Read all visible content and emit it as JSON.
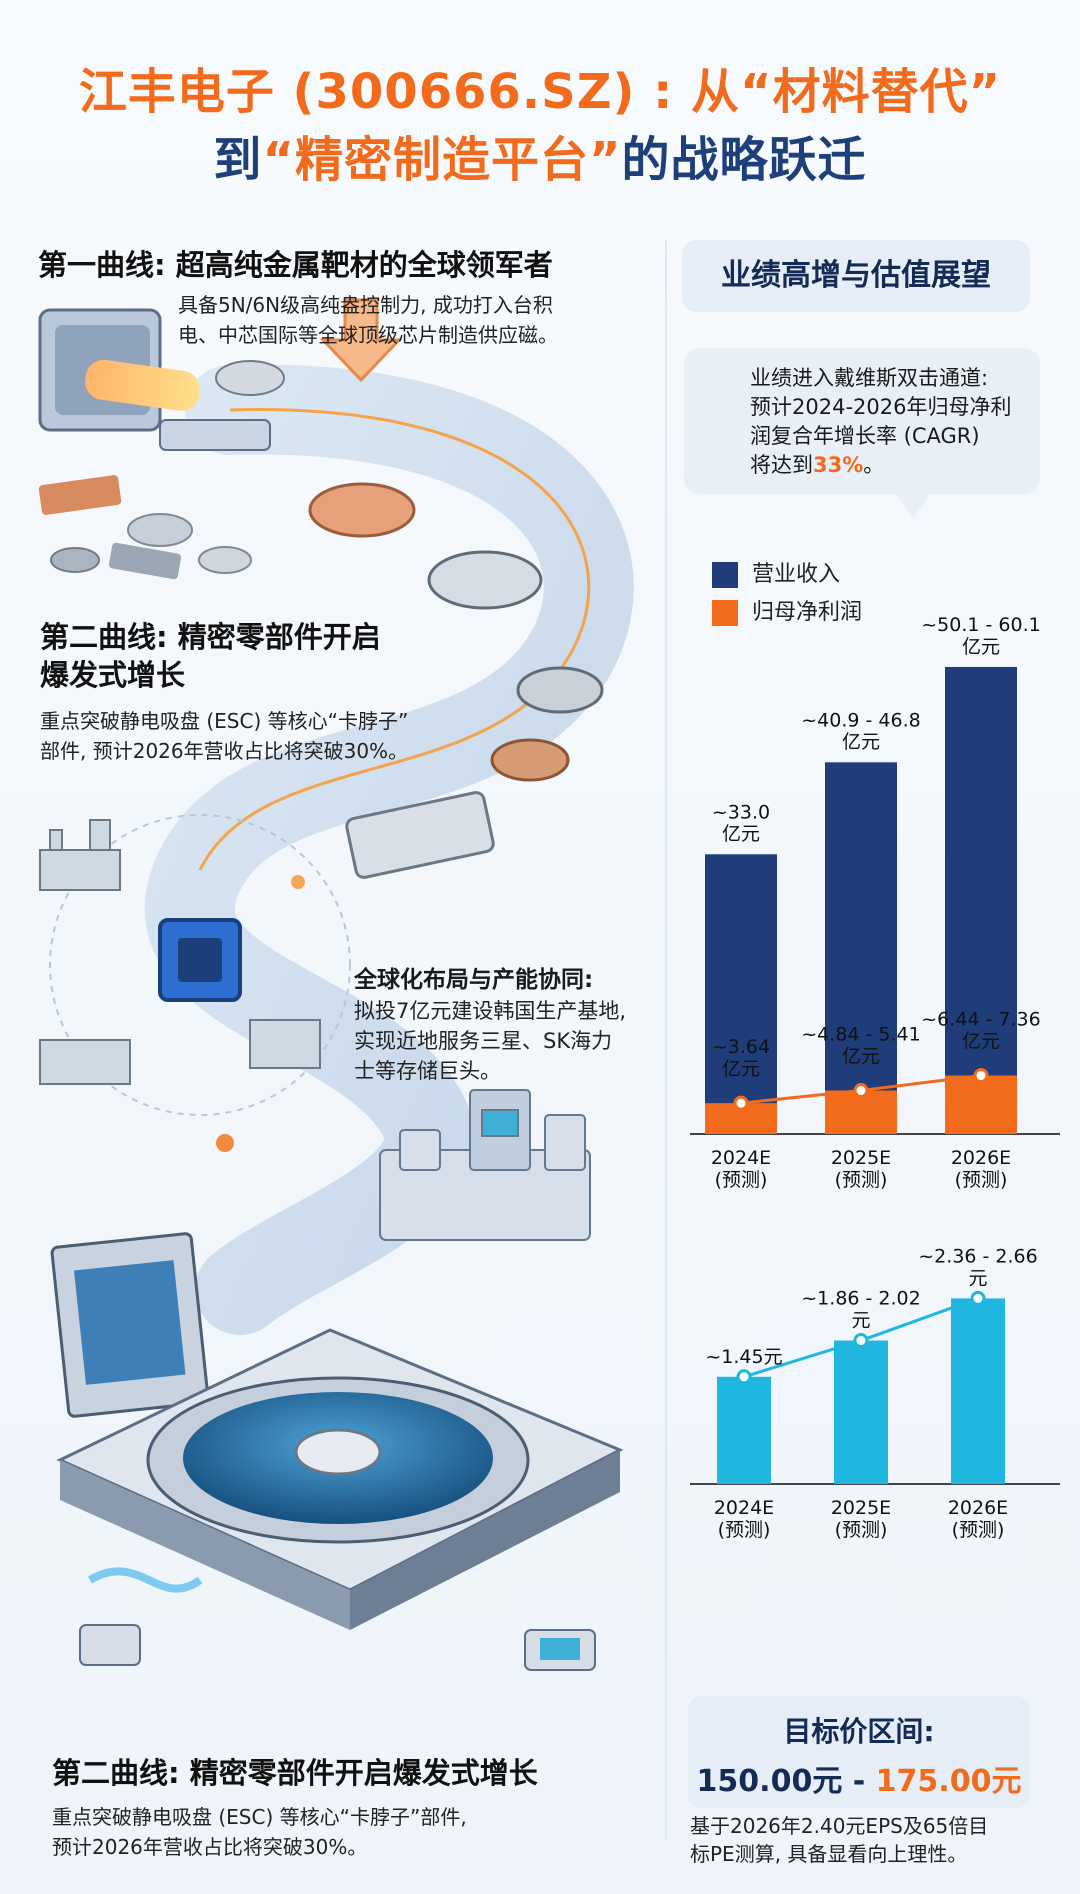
{
  "header": {
    "line1": "江丰电子 (300666.SZ) : 从“材料替代”",
    "line2_prefix": "到",
    "line2_quote": "“精密制造平台”",
    "line2_suffix": "的战略跃迁"
  },
  "sections": [
    {
      "heading": "第一曲线: 超高纯金属靶材的全球领军者",
      "body": [
        "具备5N/6N级高纯盎控制力, 成功打入台积",
        "电、中芯国际等全球顶级芯片制造供应磁。"
      ]
    },
    {
      "heading": [
        "第二曲线: 精密零部件开启",
        "爆发式增长"
      ],
      "body": [
        "重点突破静电吸盘 (ESC) 等核心“卡脖子”",
        "部件, 预计2026年营收占比将突破30%。"
      ]
    },
    {
      "heading": "全球化布局与产能协同:",
      "body": [
        "拟投7亿元建设韩国生产基地,",
        "实现近地服务三星、SK海力",
        "士等存储巨头。"
      ]
    },
    {
      "heading": "第二曲线: 精密零部件开启爆发式增长",
      "body": [
        "重点突破静电吸盘 (ESC) 等核心“卡脖子”部件,",
        "预计2026年营收占比将突破30%。"
      ]
    }
  ],
  "right": {
    "title": "业绩高增与估值展望",
    "bubble": {
      "lines": [
        "业绩进入戴维斯双击通道:",
        "预计2024-2026年归母净利",
        "润复合年增长率 (CAGR)"
      ],
      "last_prefix": "将达到",
      "last_highlight": "33%",
      "last_suffix": "。"
    },
    "legend": [
      {
        "label": "营业收入",
        "color": "#1f3d7a"
      },
      {
        "label": "归母净利润",
        "color": "#f26a1b"
      }
    ],
    "target": {
      "label": "目标价区间:",
      "low": "150.00元",
      "sep": " - ",
      "high": "175.00元"
    },
    "note": [
      "基于2026年2.40元EPS及65倍目",
      "标PE测算, 具备显看向上理性。"
    ]
  },
  "chart_data": [
    {
      "type": "bar",
      "categories": [
        "2024E\n(预测)",
        "2025E\n(预测)",
        "2026E\n(预测)"
      ],
      "series": [
        {
          "name": "营业收入",
          "values": [
            33.0,
            43.85,
            55.1
          ],
          "labels": [
            "~33.0\n亿元",
            "~40.9 - 46.8\n亿元",
            "~50.1 - 60.1\n亿元"
          ],
          "color": "#1f3d7a"
        },
        {
          "name": "归母净利润",
          "values": [
            3.64,
            5.13,
            6.9
          ],
          "labels": [
            "~3.64\n亿元",
            "~4.84 - 5.41\n亿元",
            "~6.44 - 7.36\n亿元"
          ],
          "color": "#f26a1b"
        }
      ],
      "unit": "亿元",
      "ylim": [
        0,
        63
      ]
    },
    {
      "type": "bar",
      "categories": [
        "2024E\n(预测)",
        "2025E\n(预测)",
        "2026E\n(预测)"
      ],
      "series": [
        {
          "name": "EPS",
          "values": [
            1.45,
            1.94,
            2.51
          ],
          "labels": [
            "~1.45元",
            "~1.86 - 2.02\n元",
            "~2.36 - 2.66\n元"
          ],
          "color": "#1fb6e0"
        }
      ],
      "unit": "元",
      "ylim": [
        0,
        3.3
      ]
    }
  ],
  "colors": {
    "accent": "#f26a1b",
    "navy": "#1f3d7a",
    "cyan": "#1fb6e0"
  }
}
